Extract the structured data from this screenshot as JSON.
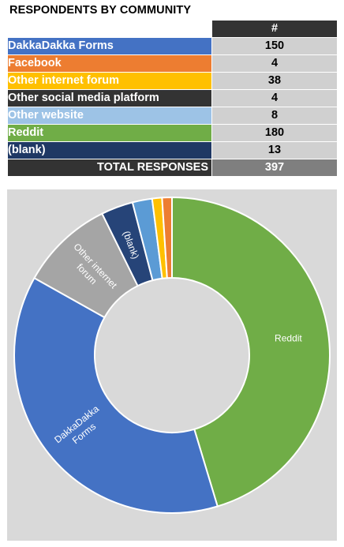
{
  "title": "RESPONDENTS BY COMMUNITY",
  "table": {
    "header": "#",
    "rows": [
      {
        "label": "DakkaDakka Forms",
        "value": "150",
        "color": "#4472c4"
      },
      {
        "label": "Facebook",
        "value": "4",
        "color": "#ed7d31"
      },
      {
        "label": "Other internet forum",
        "value": "38",
        "color": "#ffc000"
      },
      {
        "label": "Other social media platform",
        "value": "4",
        "color": "#333333"
      },
      {
        "label": "Other website",
        "value": "8",
        "color": "#9dc3e6"
      },
      {
        "label": "Reddit",
        "value": "180",
        "color": "#70ad47"
      },
      {
        "label": "(blank)",
        "value": "13",
        "color": "#1f3864"
      }
    ],
    "total_label": "TOTAL RESPONSES",
    "total_value": "397"
  },
  "chart_data": {
    "type": "pie",
    "title": "",
    "slices": [
      {
        "name": "Reddit",
        "value": 180,
        "color": "#70ad47",
        "label": "Reddit"
      },
      {
        "name": "DakkaDakka Forms",
        "value": 150,
        "color": "#4472c4",
        "label": "DakkaDakka Forms"
      },
      {
        "name": "Other internet forum",
        "value": 38,
        "color": "#a5a5a5",
        "label": "Other internet forum"
      },
      {
        "name": "(blank)",
        "value": 13,
        "color": "#264478",
        "label": "(blank)"
      },
      {
        "name": "Other website",
        "value": 8,
        "color": "#5b9bd5",
        "label": ""
      },
      {
        "name": "Other social media platform",
        "value": 4,
        "color": "#ffc000",
        "label": ""
      },
      {
        "name": "Facebook",
        "value": 4,
        "color": "#ed7d31",
        "label": ""
      }
    ]
  }
}
